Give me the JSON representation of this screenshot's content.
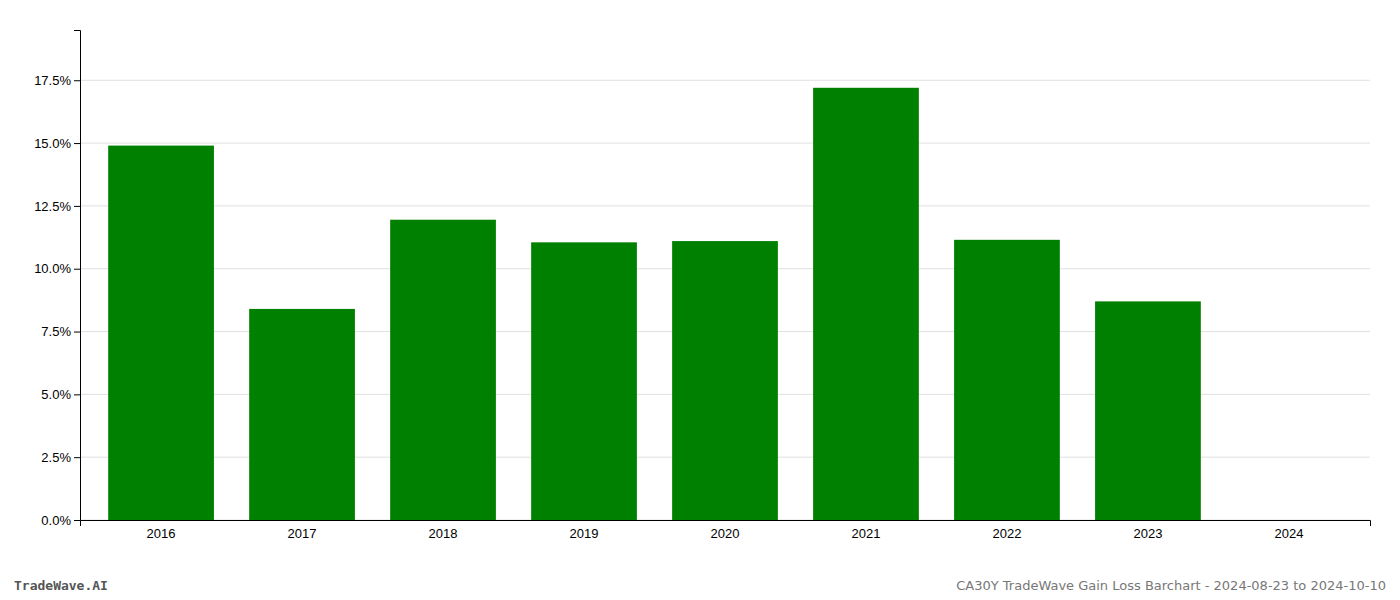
{
  "chart_data": {
    "type": "bar",
    "categories": [
      "2016",
      "2017",
      "2018",
      "2019",
      "2020",
      "2021",
      "2022",
      "2023",
      "2024"
    ],
    "values": [
      0.149,
      0.084,
      0.1195,
      0.1105,
      0.111,
      0.172,
      0.1115,
      0.087,
      0.0
    ],
    "color": "#008000",
    "ylim": [
      0,
      0.195
    ],
    "yticks": [
      {
        "value": 0.0,
        "label": "0.0%"
      },
      {
        "value": 0.025,
        "label": "2.5%"
      },
      {
        "value": 0.05,
        "label": "5.0%"
      },
      {
        "value": 0.075,
        "label": "7.5%"
      },
      {
        "value": 0.1,
        "label": "10.0%"
      },
      {
        "value": 0.125,
        "label": "12.5%"
      },
      {
        "value": 0.15,
        "label": "15.0%"
      },
      {
        "value": 0.175,
        "label": "17.5%"
      }
    ],
    "grid": true,
    "annotations": [
      "TradeWave.AI",
      "CA30Y TradeWave Gain Loss Barchart - 2024-08-23 to 2024-10-10"
    ]
  }
}
